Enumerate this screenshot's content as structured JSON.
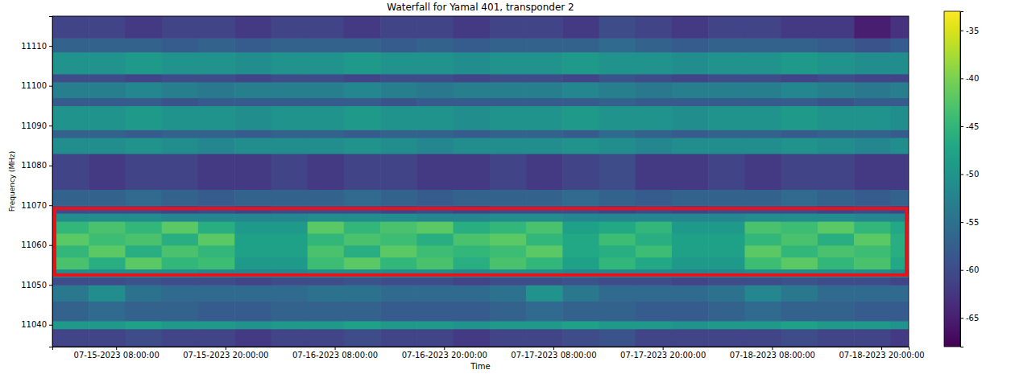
{
  "chart_data": {
    "type": "heatmap",
    "title": "Waterfall for Yamal 401, transponder 2",
    "x_label": "Time",
    "y_label": "Frequency (MHz)",
    "xlim": [
      "2023-07-15 01:00",
      "2023-07-18 23:00"
    ],
    "xticks": [
      {
        "value": "2023-07-15 08:00",
        "label": "07-15-2023 08:00:00"
      },
      {
        "value": "2023-07-15 20:00",
        "label": "07-15-2023 20:00:00"
      },
      {
        "value": "2023-07-16 08:00",
        "label": "07-16-2023 08:00:00"
      },
      {
        "value": "2023-07-16 20:00",
        "label": "07-16-2023 20:00:00"
      },
      {
        "value": "2023-07-17 08:00",
        "label": "07-17-2023 08:00:00"
      },
      {
        "value": "2023-07-17 20:00",
        "label": "07-17-2023 20:00:00"
      },
      {
        "value": "2023-07-18 08:00",
        "label": "07-18-2023 08:00:00"
      },
      {
        "value": "2023-07-18 20:00",
        "label": "07-18-2023 20:00:00"
      }
    ],
    "ylim": [
      11034.5,
      11117.5
    ],
    "yticks": [
      11040,
      11050,
      11060,
      11070,
      11080,
      11090,
      11100,
      11110
    ],
    "x_edges": [
      "2023-07-15 01:00",
      "2023-07-15 05:00",
      "2023-07-15 09:00",
      "2023-07-15 13:00",
      "2023-07-15 17:00",
      "2023-07-15 21:00",
      "2023-07-16 01:00",
      "2023-07-16 05:00",
      "2023-07-16 09:00",
      "2023-07-16 13:00",
      "2023-07-16 17:00",
      "2023-07-16 21:00",
      "2023-07-17 01:00",
      "2023-07-17 05:00",
      "2023-07-17 09:00",
      "2023-07-17 13:00",
      "2023-07-17 17:00",
      "2023-07-17 21:00",
      "2023-07-18 01:00",
      "2023-07-18 05:00",
      "2023-07-18 09:00",
      "2023-07-18 13:00",
      "2023-07-18 17:00",
      "2023-07-18 21:00",
      "2023-07-18 23:00"
    ],
    "y_edges": [
      11034.5,
      11039,
      11041,
      11046,
      11050,
      11052,
      11054,
      11057,
      11060,
      11063,
      11066,
      11068,
      11070,
      11074,
      11083,
      11087,
      11089,
      11095,
      11097,
      11101,
      11103,
      11108.5,
      11112,
      11117.5
    ],
    "values": [
      [
        -61,
        -61,
        -60,
        -61,
        -61,
        -62,
        -61,
        -61,
        -60,
        -61,
        -61,
        -62,
        -61,
        -61,
        -60,
        -59,
        -61,
        -61,
        -61,
        -61,
        -60,
        -61,
        -61,
        -62
      ],
      [
        -49,
        -49,
        -48,
        -49,
        -49,
        -50,
        -49,
        -49,
        -48,
        -49,
        -49,
        -50,
        -49,
        -49,
        -48,
        -49,
        -49,
        -50,
        -49,
        -49,
        -48,
        -49,
        -49,
        -50
      ],
      [
        -57,
        -56,
        -57,
        -57,
        -58,
        -58,
        -57,
        -57,
        -57,
        -58,
        -58,
        -58,
        -57,
        -56,
        -57,
        -57,
        -58,
        -58,
        -57,
        -56,
        -57,
        -57,
        -58,
        -58
      ],
      [
        -54,
        -51,
        -55,
        -56,
        -56,
        -56,
        -56,
        -55,
        -55,
        -56,
        -56,
        -56,
        -55,
        -50,
        -54,
        -56,
        -56,
        -56,
        -55,
        -52,
        -54,
        -56,
        -56,
        -56
      ],
      [
        -60,
        -60,
        -59,
        -60,
        -60,
        -61,
        -60,
        -60,
        -59,
        -60,
        -60,
        -61,
        -60,
        -60,
        -59,
        -60,
        -60,
        -61,
        -60,
        -60,
        -59,
        -60,
        -60,
        -61
      ],
      [
        -51,
        -51,
        -51,
        -51,
        -52,
        -52,
        -52,
        -51,
        -51,
        -51,
        -51,
        -52,
        -51,
        -51,
        -52,
        -52,
        -52,
        -52,
        -52,
        -51,
        -51,
        -51,
        -51,
        -52
      ],
      [
        -43,
        -46,
        -42,
        -45,
        -44,
        -49,
        -49,
        -44,
        -42,
        -45,
        -43,
        -46,
        -43,
        -45,
        -48,
        -45,
        -47,
        -49,
        -49,
        -44,
        -42,
        -45,
        -43,
        -47
      ],
      [
        -45,
        -42,
        -46,
        -43,
        -45,
        -48,
        -48,
        -43,
        -46,
        -42,
        -44,
        -45,
        -44,
        -42,
        -47,
        -46,
        -44,
        -48,
        -48,
        -42,
        -45,
        -43,
        -44,
        -46
      ],
      [
        -42,
        -44,
        -43,
        -46,
        -42,
        -48,
        -48,
        -45,
        -43,
        -44,
        -46,
        -43,
        -42,
        -45,
        -47,
        -44,
        -46,
        -48,
        -48,
        -45,
        -43,
        -46,
        -42,
        -46
      ],
      [
        -45,
        -43,
        -45,
        -42,
        -46,
        -49,
        -49,
        -42,
        -45,
        -43,
        -42,
        -46,
        -45,
        -43,
        -48,
        -47,
        -45,
        -49,
        -49,
        -43,
        -44,
        -42,
        -45,
        -47
      ],
      [
        -51,
        -51,
        -51,
        -52,
        -52,
        -52,
        -52,
        -51,
        -51,
        -51,
        -52,
        -52,
        -51,
        -51,
        -52,
        -52,
        -52,
        -52,
        -52,
        -51,
        -51,
        -51,
        -52,
        -52
      ],
      [
        -60,
        -60,
        -60,
        -61,
        -60,
        -61,
        -60,
        -60,
        -60,
        -61,
        -60,
        -61,
        -60,
        -60,
        -60,
        -61,
        -60,
        -61,
        -60,
        -60,
        -60,
        -61,
        -60,
        -61
      ],
      [
        -57,
        -57,
        -56,
        -57,
        -58,
        -57,
        -57,
        -57,
        -56,
        -57,
        -58,
        -57,
        -57,
        -57,
        -56,
        -57,
        -58,
        -57,
        -57,
        -57,
        -56,
        -57,
        -58,
        -57
      ],
      [
        -61,
        -62,
        -61,
        -61,
        -62,
        -62,
        -61,
        -62,
        -61,
        -61,
        -62,
        -62,
        -61,
        -62,
        -61,
        -60,
        -62,
        -62,
        -61,
        -62,
        -61,
        -61,
        -62,
        -62
      ],
      [
        -51,
        -51,
        -50,
        -51,
        -52,
        -51,
        -51,
        -51,
        -50,
        -51,
        -52,
        -51,
        -51,
        -51,
        -50,
        -51,
        -52,
        -51,
        -51,
        -51,
        -50,
        -51,
        -52,
        -51
      ],
      [
        -57,
        -57,
        -58,
        -57,
        -57,
        -58,
        -57,
        -57,
        -58,
        -57,
        -57,
        -58,
        -57,
        -57,
        -58,
        -56,
        -57,
        -58,
        -57,
        -57,
        -58,
        -57,
        -57,
        -58
      ],
      [
        -50,
        -50,
        -49,
        -50,
        -50,
        -51,
        -50,
        -50,
        -49,
        -50,
        -50,
        -51,
        -50,
        -50,
        -49,
        -50,
        -50,
        -51,
        -50,
        -50,
        -49,
        -50,
        -50,
        -51
      ],
      [
        -58,
        -58,
        -58,
        -59,
        -58,
        -58,
        -58,
        -58,
        -58,
        -59,
        -58,
        -58,
        -58,
        -58,
        -58,
        -57,
        -58,
        -58,
        -58,
        -58,
        -58,
        -59,
        -58,
        -58
      ],
      [
        -53,
        -53,
        -52,
        -53,
        -54,
        -53,
        -53,
        -53,
        -52,
        -53,
        -54,
        -53,
        -53,
        -53,
        -52,
        -53,
        -54,
        -53,
        -53,
        -53,
        -52,
        -53,
        -54,
        -53
      ],
      [
        -60,
        -60,
        -61,
        -60,
        -60,
        -61,
        -60,
        -60,
        -61,
        -60,
        -60,
        -61,
        -60,
        -60,
        -61,
        -59,
        -60,
        -61,
        -60,
        -60,
        -61,
        -60,
        -61,
        -61
      ],
      [
        -50,
        -50,
        -49,
        -50,
        -50,
        -51,
        -50,
        -50,
        -49,
        -50,
        -50,
        -51,
        -50,
        -50,
        -49,
        -50,
        -50,
        -51,
        -50,
        -50,
        -49,
        -50,
        -51,
        -51
      ],
      [
        -57,
        -57,
        -57,
        -58,
        -57,
        -58,
        -57,
        -57,
        -57,
        -58,
        -57,
        -58,
        -57,
        -57,
        -57,
        -56,
        -57,
        -58,
        -57,
        -57,
        -57,
        -58,
        -59,
        -58
      ],
      [
        -61,
        -61,
        -62,
        -61,
        -61,
        -62,
        -61,
        -61,
        -62,
        -61,
        -61,
        -62,
        -61,
        -61,
        -62,
        -60,
        -61,
        -62,
        -61,
        -61,
        -62,
        -62,
        -65,
        -63
      ]
    ],
    "highlight_range": [
      11052.5,
      11069.2
    ],
    "colorbar_range": [
      -68,
      -33
    ],
    "colorbar_ticks": [
      -65,
      -60,
      -55,
      -50,
      -45,
      -40,
      -35
    ]
  }
}
